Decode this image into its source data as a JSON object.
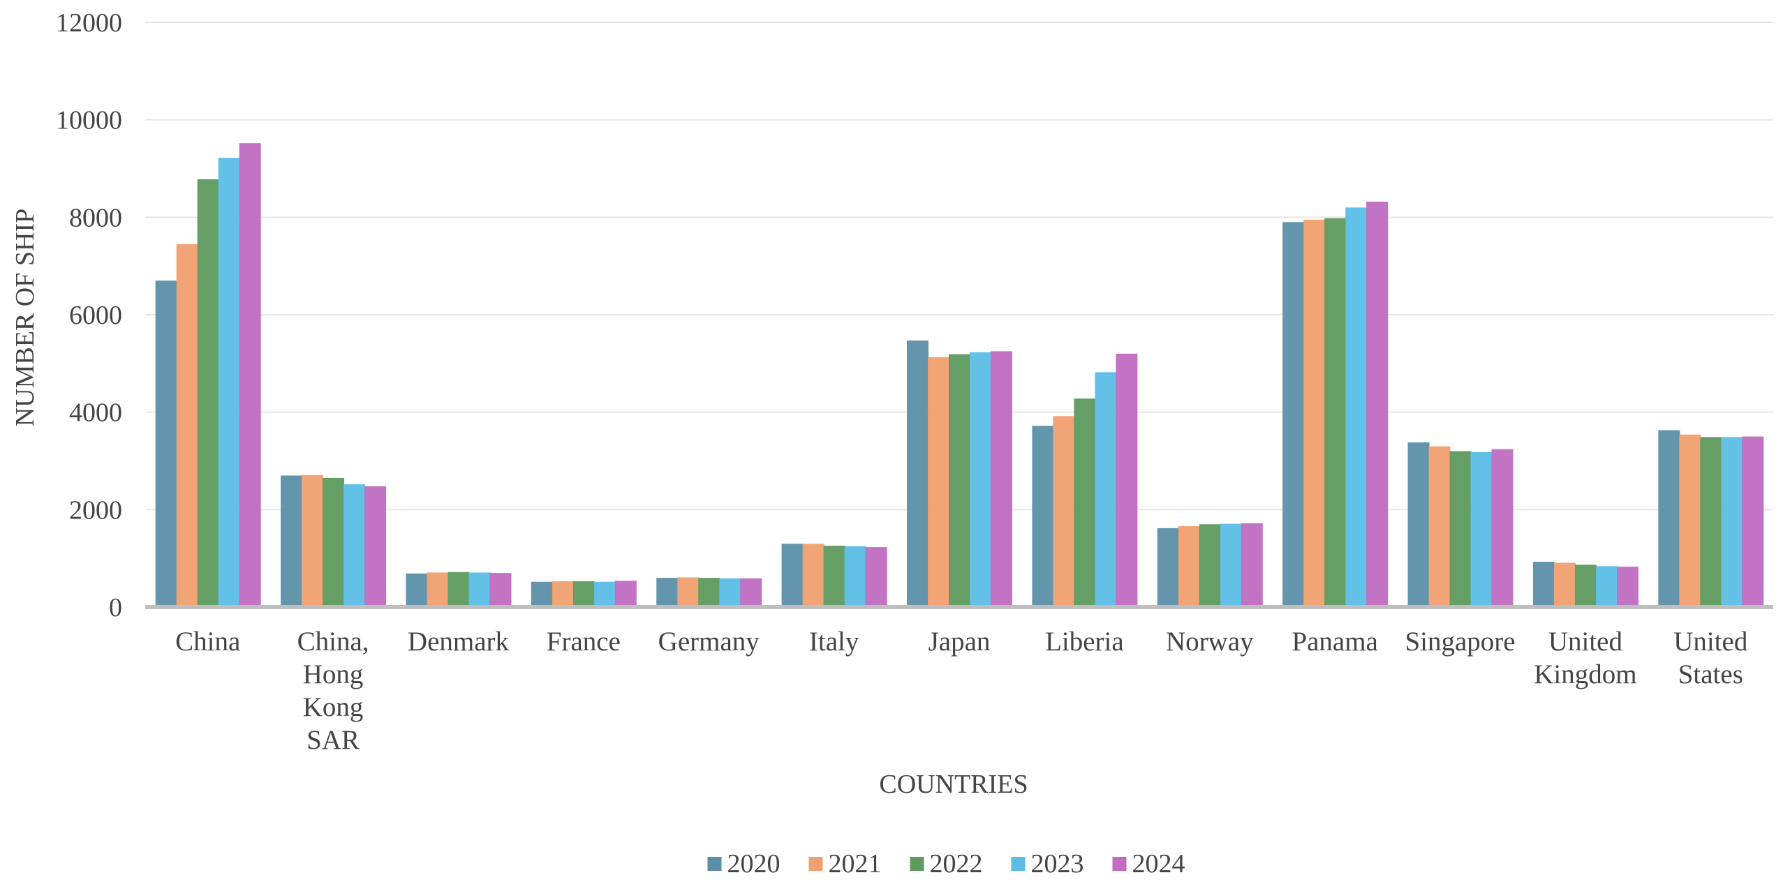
{
  "chart_data": {
    "type": "bar",
    "xlabel": "COUNTRIES",
    "ylabel": "NUMBER OF SHIP",
    "ylim": [
      0,
      12000
    ],
    "yticks": [
      "0",
      "2000",
      "4000",
      "6000",
      "8000",
      "10000",
      "12000"
    ],
    "grid": true,
    "legend_position": "bottom",
    "categories": [
      [
        "China"
      ],
      [
        "China,",
        "Hong",
        "Kong",
        "SAR"
      ],
      [
        "Denmark"
      ],
      [
        "France"
      ],
      [
        "Germany"
      ],
      [
        "Italy"
      ],
      [
        "Japan"
      ],
      [
        "Liberia"
      ],
      [
        "Norway"
      ],
      [
        "Panama"
      ],
      [
        "Singapore"
      ],
      [
        "United",
        "Kingdom"
      ],
      [
        "United",
        "States"
      ]
    ],
    "series": [
      {
        "name": "2020",
        "color": "#5b8fa8",
        "values": [
          6700,
          2700,
          690,
          520,
          600,
          1300,
          5470,
          3720,
          1620,
          7900,
          3380,
          930,
          3630
        ]
      },
      {
        "name": "2021",
        "color": "#f0a070",
        "values": [
          7450,
          2710,
          710,
          530,
          610,
          1300,
          5130,
          3920,
          1660,
          7950,
          3300,
          910,
          3540
        ]
      },
      {
        "name": "2022",
        "color": "#5e9a5e",
        "values": [
          8780,
          2650,
          720,
          530,
          600,
          1260,
          5190,
          4280,
          1700,
          7980,
          3200,
          870,
          3490
        ]
      },
      {
        "name": "2023",
        "color": "#5bbde6",
        "values": [
          9220,
          2520,
          710,
          520,
          590,
          1250,
          5230,
          4820,
          1710,
          8200,
          3180,
          840,
          3490
        ]
      },
      {
        "name": "2024",
        "color": "#c06cc0",
        "values": [
          9520,
          2480,
          700,
          540,
          590,
          1230,
          5250,
          5200,
          1720,
          8320,
          3240,
          830,
          3500
        ]
      }
    ]
  }
}
